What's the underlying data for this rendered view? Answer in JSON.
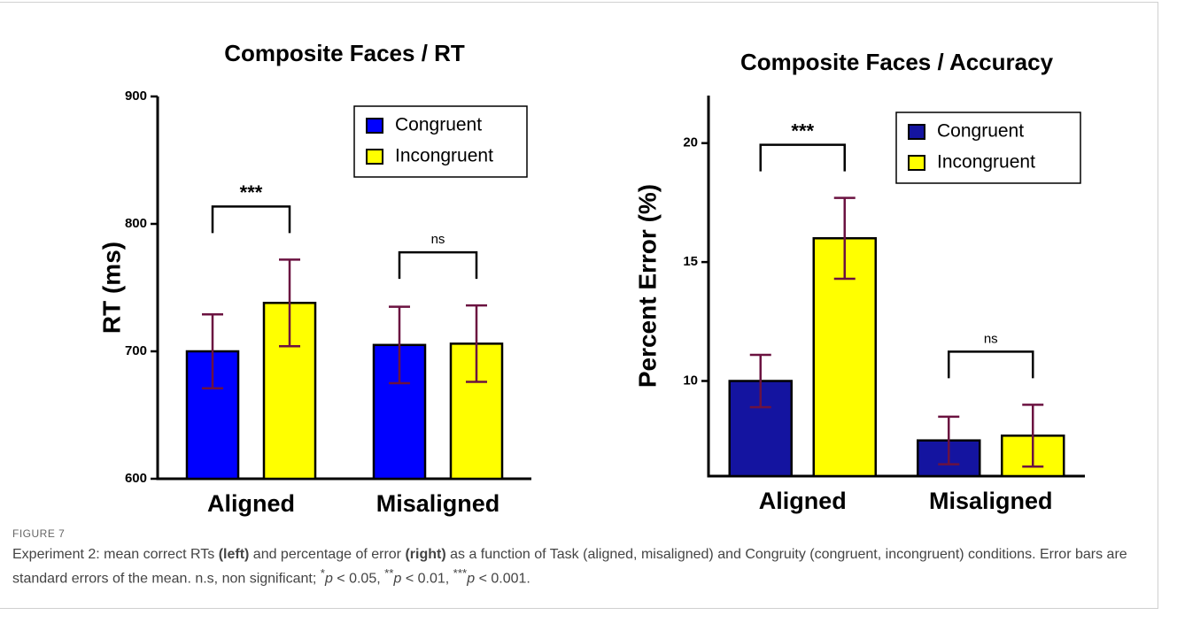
{
  "chart_data": [
    {
      "type": "bar",
      "title": "Composite Faces / RT",
      "y_label": "RT (ms)",
      "categories": [
        "Aligned",
        "Misaligned"
      ],
      "series": [
        {
          "name": "Congruent",
          "color": "#0000ff",
          "values": [
            700,
            705
          ],
          "errors": [
            29,
            30
          ]
        },
        {
          "name": "Incongruent",
          "color": "#ffff00",
          "values": [
            738,
            706
          ],
          "errors": [
            34,
            30
          ]
        }
      ],
      "error_color": "#6b1240",
      "annotations": [
        "***",
        "ns"
      ],
      "ylim": [
        600,
        900
      ],
      "yticks": [
        600,
        700,
        800,
        900
      ],
      "legend": "upper right"
    },
    {
      "type": "bar",
      "title": "Composite Faces / Accuracy",
      "y_label": "Percent Error (%)",
      "categories": [
        "Aligned",
        "Misaligned"
      ],
      "series": [
        {
          "name": "Congruent",
          "color": "#1414a0",
          "values": [
            10.0,
            7.5
          ],
          "errors": [
            1.1,
            1.0
          ]
        },
        {
          "name": "Incongruent",
          "color": "#ffff00",
          "values": [
            16.0,
            7.7
          ],
          "errors": [
            1.7,
            1.3
          ]
        }
      ],
      "error_color": "#6b1240",
      "annotations": [
        "***",
        "ns"
      ],
      "ylim": [
        6,
        22
      ],
      "yticks": [
        10,
        15,
        20
      ],
      "legend": "upper right"
    }
  ],
  "caption": {
    "label": "FIGURE 7",
    "parts": [
      "Experiment 2: mean correct RTs ",
      "(left)",
      " and percentage of error ",
      "(right)",
      " as a function of Task (aligned, misaligned) and Congruity (congruent, incongruent) conditions. Error bars are standard errors of the mean. n.s, non significant; ",
      "*",
      "p",
      " < 0.05, ",
      "**",
      "p",
      " < 0.01, ",
      "***",
      "p",
      " < 0.001."
    ]
  }
}
